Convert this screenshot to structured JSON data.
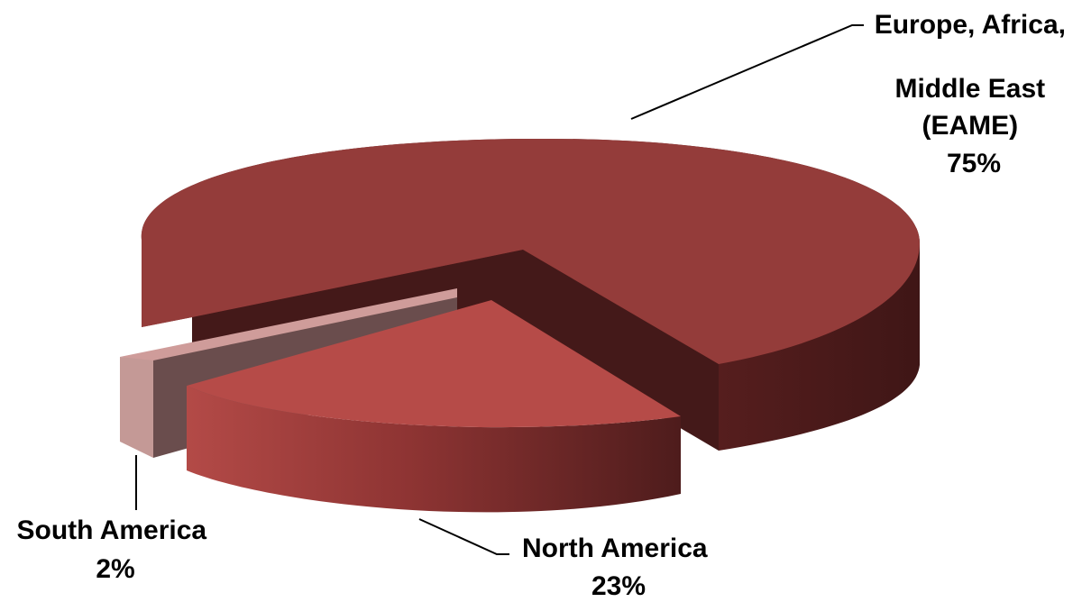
{
  "chart_data": {
    "type": "pie",
    "style": "3d-exploded",
    "title": "",
    "legend": "none",
    "slices": [
      {
        "key": "eame",
        "label_lines": [
          "Europe, Africa,",
          "Middle East",
          "(EAME)"
        ],
        "percent_label": "75%",
        "value": 75,
        "color": "#943c3a"
      },
      {
        "key": "south_america",
        "label_lines": [
          "South America"
        ],
        "percent_label": "2%",
        "value": 2,
        "color": "#cf9c9a"
      },
      {
        "key": "north_america",
        "label_lines": [
          "North America"
        ],
        "percent_label": "23%",
        "value": 23,
        "color": "#b64b48"
      }
    ]
  }
}
